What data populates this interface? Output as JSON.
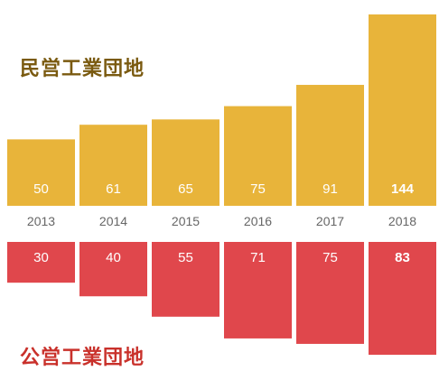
{
  "chart_data": [
    {
      "type": "bar",
      "title": "民営工業団地",
      "categories": [
        "2013",
        "2014",
        "2015",
        "2016",
        "2017",
        "2018"
      ],
      "values": [
        50,
        61,
        65,
        75,
        91,
        144
      ],
      "value_labels": [
        "50",
        "61",
        "65",
        "75",
        "91",
        "144"
      ],
      "direction": "up",
      "color": "#E8B43A",
      "title_color": "#7A5A10",
      "grid": false,
      "legend": "none"
    },
    {
      "type": "bar",
      "title": "公営工業団地",
      "categories": [
        "2013",
        "2014",
        "2015",
        "2016",
        "2017",
        "2018"
      ],
      "values": [
        30,
        40,
        55,
        71,
        75,
        83
      ],
      "value_labels": [
        "30",
        "40",
        "55",
        "71",
        "75",
        "83"
      ],
      "direction": "down",
      "color": "#E0474C",
      "title_color": "#C9312B",
      "grid": false,
      "legend": "none"
    }
  ],
  "year_label_color": "#666666"
}
